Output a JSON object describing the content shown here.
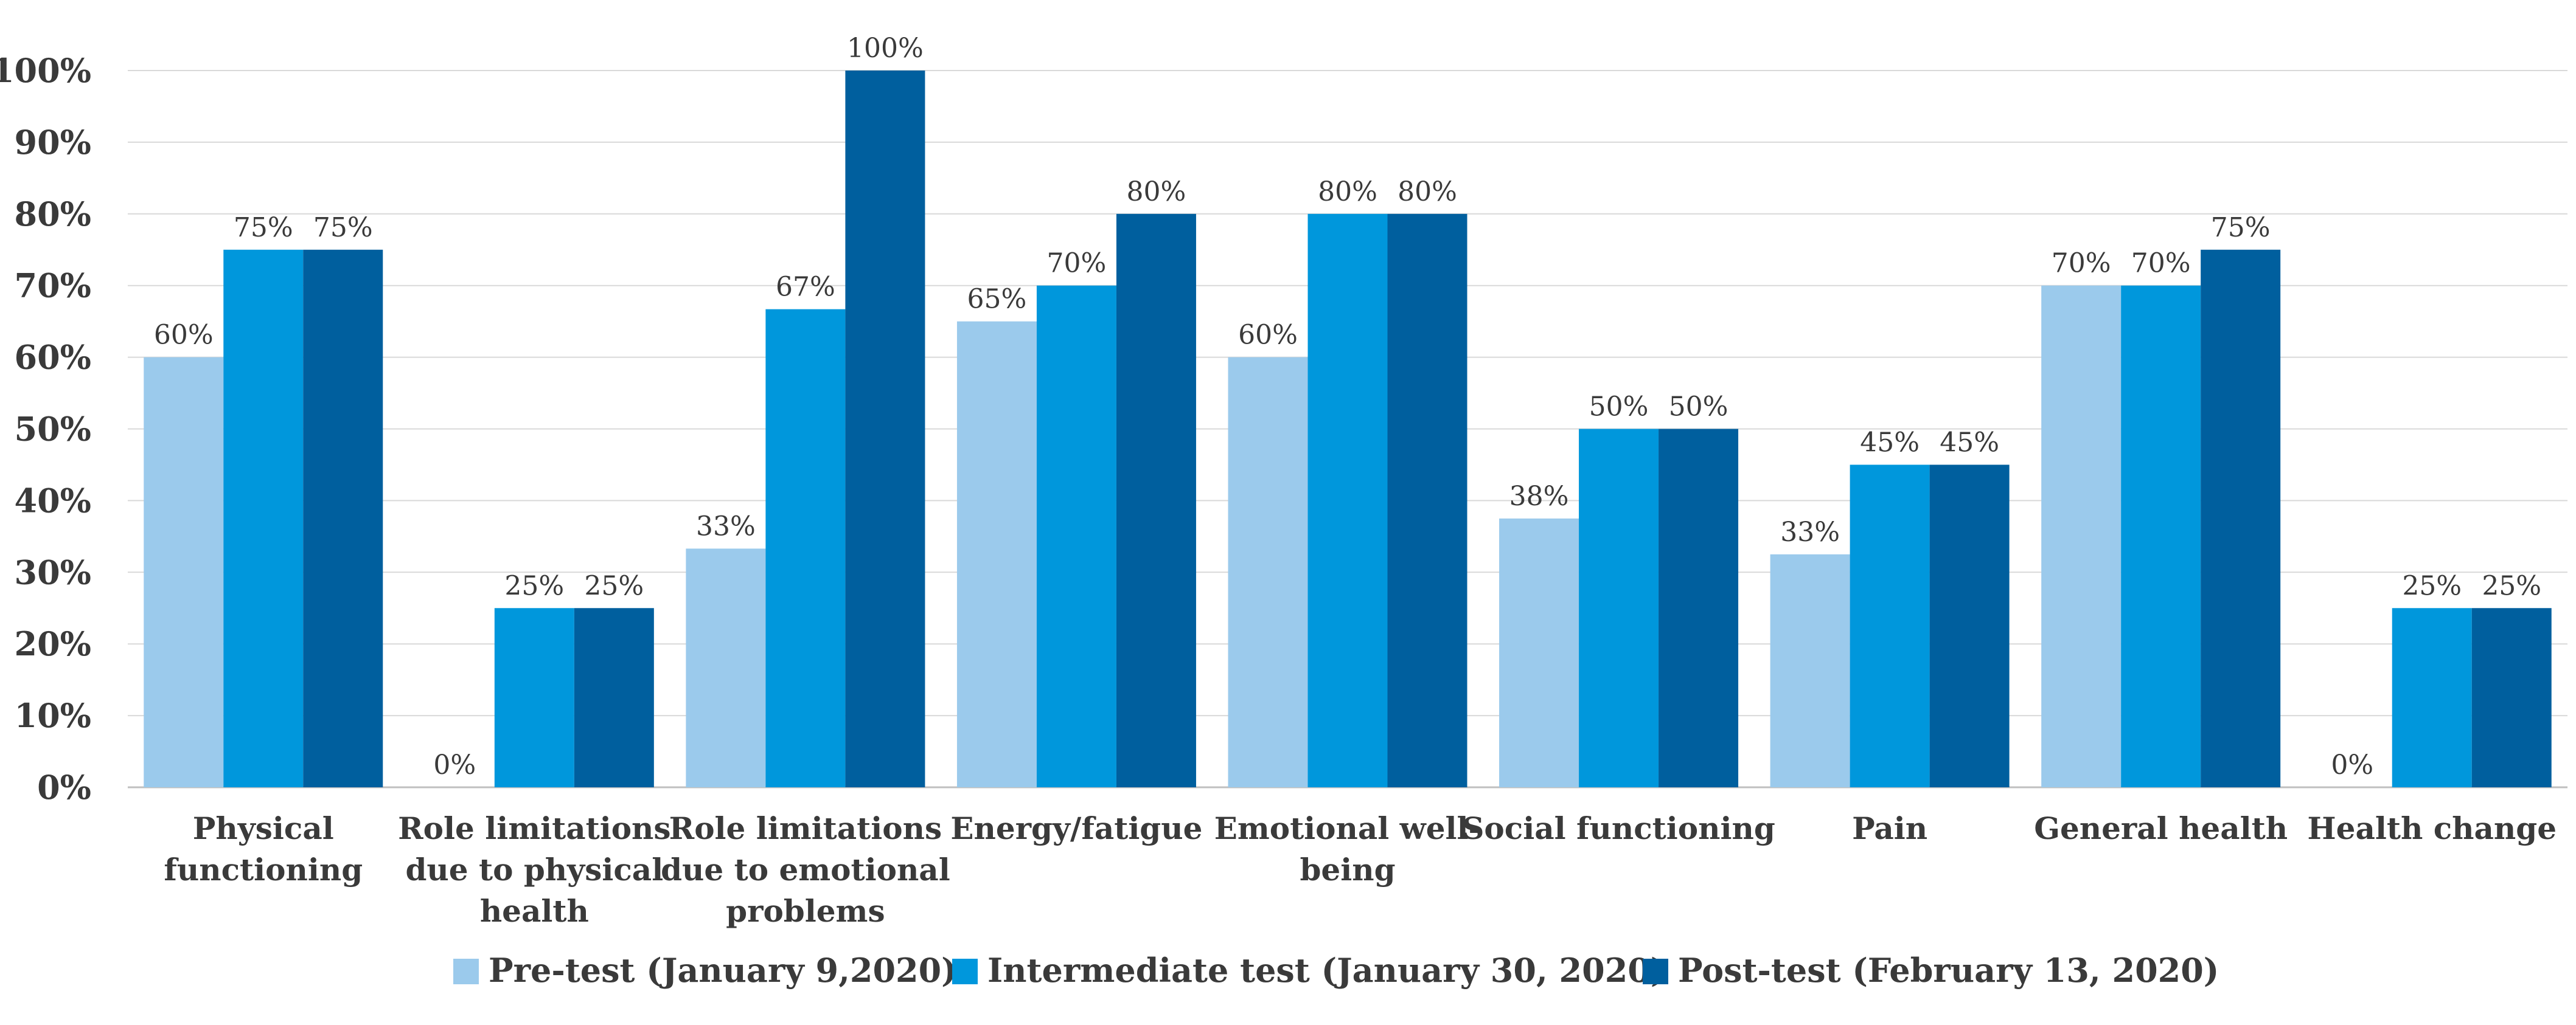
{
  "chart_data": {
    "type": "bar",
    "title": "",
    "xlabel": "",
    "ylabel": "",
    "ylim": [
      0,
      100
    ],
    "y_ticks": [
      "0%",
      "10%",
      "20%",
      "30%",
      "40%",
      "50%",
      "60%",
      "70%",
      "80%",
      "90%",
      "100%"
    ],
    "grid": true,
    "legend_position": "bottom",
    "categories": [
      [
        "Physical",
        "functioning"
      ],
      [
        "Role limitations",
        "due to physical",
        "health"
      ],
      [
        "Role limitations",
        "due to emotional",
        "problems"
      ],
      [
        "Energy/fatigue"
      ],
      [
        "Emotional well-",
        "being"
      ],
      [
        "Social functioning"
      ],
      [
        "Pain"
      ],
      [
        "General health"
      ],
      [
        "Health change"
      ]
    ],
    "series": [
      {
        "name": "Pre-test (January 9,2020)",
        "color": "#9BCAEC",
        "values": [
          60,
          0,
          33.3,
          65,
          60,
          37.5,
          32.5,
          70,
          0
        ],
        "labels": [
          "60%",
          "0%",
          "33%",
          "65%",
          "60%",
          "38%",
          "33%",
          "70%",
          "0%"
        ]
      },
      {
        "name": "Intermediate test (January 30, 2020)",
        "color": "#0097DC",
        "values": [
          75,
          25,
          66.7,
          70,
          80,
          50,
          45,
          70,
          25
        ],
        "labels": [
          "75%",
          "25%",
          "67%",
          "70%",
          "80%",
          "50%",
          "45%",
          "70%",
          "25%"
        ]
      },
      {
        "name": "Post-test (February 13, 2020)",
        "color": "#005F9E",
        "values": [
          75,
          25,
          100,
          80,
          80,
          50,
          45,
          75,
          25
        ],
        "labels": [
          "75%",
          "25%",
          "100%",
          "80%",
          "80%",
          "50%",
          "45%",
          "75%",
          "25%"
        ]
      }
    ]
  }
}
